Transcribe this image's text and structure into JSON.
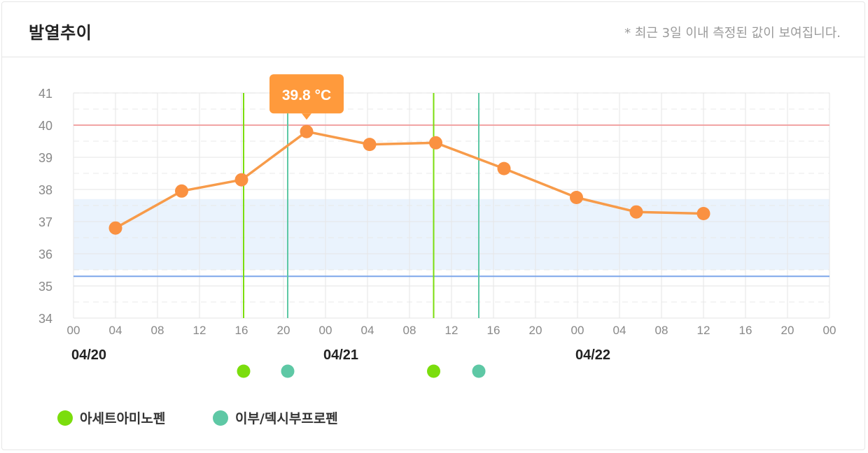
{
  "header": {
    "title": "발열추이",
    "note": "* 최근 3일 이내 측정된 값이 보여집니다."
  },
  "colors": {
    "temp_line": "#f79b4a",
    "temp_point": "#fa9141",
    "high_line": "#f1a4a4",
    "low_line": "#7da6ea",
    "normal_band": "#eaf3fd",
    "acetaminophen": "#7bdd0d",
    "ibuprofen": "#5ec8a5",
    "grid": "#e6e6e6",
    "axis_text": "#888888",
    "tooltip_bg": "#ff9a3c"
  },
  "legend": [
    {
      "label": "아세트아미노펜",
      "color_key": "acetaminophen"
    },
    {
      "label": "이부/덱시부프로펜",
      "color_key": "ibuprofen"
    }
  ],
  "chart_data": {
    "type": "line",
    "ylim": [
      34,
      41
    ],
    "y_ticks": [
      "34",
      "35",
      "36",
      "37",
      "38",
      "39",
      "40",
      "41"
    ],
    "x_range_hours": [
      0,
      72
    ],
    "x_tick_labels": [
      "00",
      "04",
      "08",
      "12",
      "16",
      "20",
      "00",
      "04",
      "08",
      "12",
      "16",
      "20",
      "00",
      "04",
      "08",
      "12",
      "16",
      "20",
      "00"
    ],
    "date_labels": [
      {
        "label": "04/20",
        "hour": 0
      },
      {
        "label": "04/21",
        "hour": 24
      },
      {
        "label": "04/22",
        "hour": 48
      }
    ],
    "normal_band": [
      35.5,
      37.7
    ],
    "high_threshold": 40.0,
    "low_threshold": 35.3,
    "series": [
      {
        "name": "",
        "points": [
          {
            "hour": 4.0,
            "value": 36.8
          },
          {
            "hour": 10.3,
            "value": 37.95
          },
          {
            "hour": 16.0,
            "value": 38.3
          },
          {
            "hour": 22.2,
            "value": 39.8
          },
          {
            "hour": 28.2,
            "value": 39.4
          },
          {
            "hour": 34.5,
            "value": 39.45
          },
          {
            "hour": 41.0,
            "value": 38.65
          },
          {
            "hour": 47.9,
            "value": 37.75
          },
          {
            "hour": 53.6,
            "value": 37.3
          },
          {
            "hour": 60.0,
            "value": 37.25
          }
        ]
      }
    ],
    "tooltip": {
      "label": "39.8 °C",
      "point_index": 3
    },
    "medications": [
      {
        "type": "acetaminophen",
        "hour": 16.2
      },
      {
        "type": "ibuprofen",
        "hour": 20.4
      },
      {
        "type": "acetaminophen",
        "hour": 34.3
      },
      {
        "type": "ibuprofen",
        "hour": 38.6
      }
    ]
  }
}
